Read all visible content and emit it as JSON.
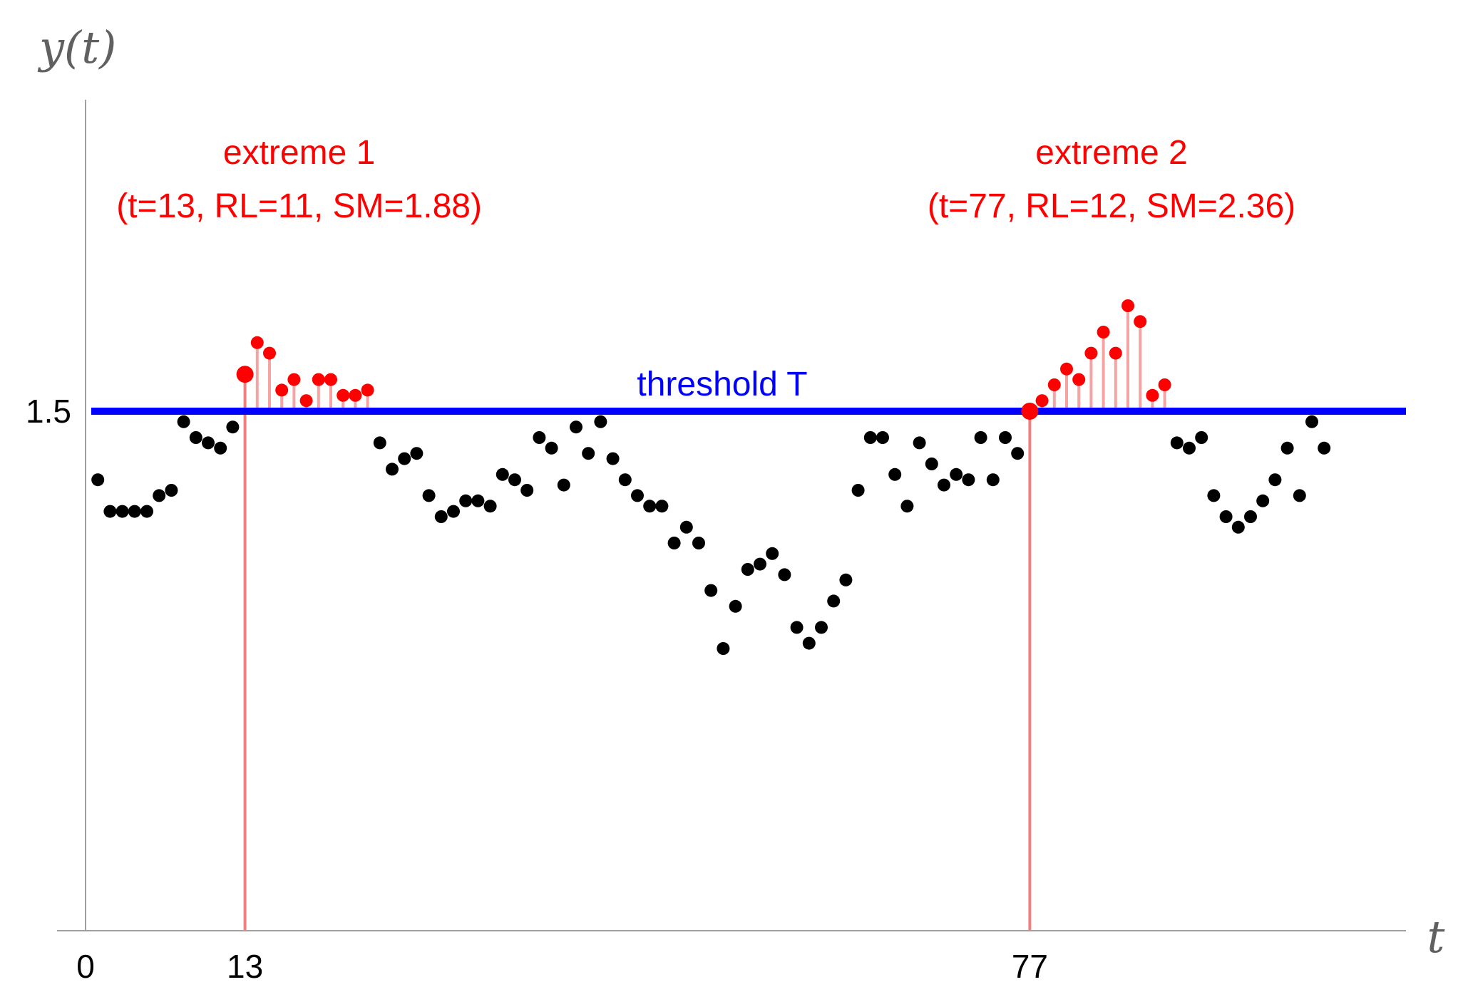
{
  "chart_data": {
    "type": "scatter",
    "title": "",
    "xlabel": "t",
    "ylabel": "y(t)",
    "xlim": [
      0,
      101
    ],
    "ylim": [
      0.75,
      1.82
    ],
    "grid": false,
    "x_ticks": [
      {
        "value": 0,
        "label": "0"
      },
      {
        "value": 13,
        "label": "13"
      },
      {
        "value": 77,
        "label": "77"
      }
    ],
    "y_ticks": [
      {
        "value": 1.5,
        "label": "1.5"
      }
    ],
    "threshold": {
      "value": 1.5,
      "label": "threshold T",
      "color": "#0000ff"
    },
    "colors": {
      "normal": "#000000",
      "extreme": "#ff0000",
      "stem": "#f5a3a3",
      "onset_line": "#f08080",
      "axis": "#808080"
    },
    "series": [
      {
        "points": [
          [
            1,
            1.37
          ],
          [
            2,
            1.31
          ],
          [
            3,
            1.31
          ],
          [
            4,
            1.31
          ],
          [
            5,
            1.31
          ],
          [
            6,
            1.34
          ],
          [
            7,
            1.35
          ],
          [
            8,
            1.48
          ],
          [
            9,
            1.45
          ],
          [
            10,
            1.44
          ],
          [
            11,
            1.43
          ],
          [
            12,
            1.47
          ],
          [
            13,
            1.57
          ],
          [
            14,
            1.63
          ],
          [
            15,
            1.61
          ],
          [
            16,
            1.54
          ],
          [
            17,
            1.56
          ],
          [
            18,
            1.52
          ],
          [
            19,
            1.56
          ],
          [
            20,
            1.56
          ],
          [
            21,
            1.53
          ],
          [
            22,
            1.53
          ],
          [
            23,
            1.54
          ],
          [
            24,
            1.44
          ],
          [
            25,
            1.39
          ],
          [
            26,
            1.41
          ],
          [
            27,
            1.42
          ],
          [
            28,
            1.34
          ],
          [
            29,
            1.3
          ],
          [
            30,
            1.31
          ],
          [
            31,
            1.33
          ],
          [
            32,
            1.33
          ],
          [
            33,
            1.32
          ],
          [
            34,
            1.38
          ],
          [
            35,
            1.37
          ],
          [
            36,
            1.35
          ],
          [
            37,
            1.45
          ],
          [
            38,
            1.43
          ],
          [
            39,
            1.36
          ],
          [
            40,
            1.47
          ],
          [
            41,
            1.42
          ],
          [
            42,
            1.48
          ],
          [
            43,
            1.41
          ],
          [
            44,
            1.37
          ],
          [
            45,
            1.34
          ],
          [
            46,
            1.32
          ],
          [
            47,
            1.32
          ],
          [
            48,
            1.25
          ],
          [
            49,
            1.28
          ],
          [
            50,
            1.25
          ],
          [
            51,
            1.16
          ],
          [
            52,
            1.05
          ],
          [
            53,
            1.13
          ],
          [
            54,
            1.2
          ],
          [
            55,
            1.21
          ],
          [
            56,
            1.23
          ],
          [
            57,
            1.19
          ],
          [
            58,
            1.09
          ],
          [
            59,
            1.06
          ],
          [
            60,
            1.09
          ],
          [
            61,
            1.14
          ],
          [
            62,
            1.18
          ],
          [
            63,
            1.35
          ],
          [
            64,
            1.45
          ],
          [
            65,
            1.45
          ],
          [
            66,
            1.38
          ],
          [
            67,
            1.32
          ],
          [
            68,
            1.44
          ],
          [
            69,
            1.4
          ],
          [
            70,
            1.36
          ],
          [
            71,
            1.38
          ],
          [
            72,
            1.37
          ],
          [
            73,
            1.45
          ],
          [
            74,
            1.37
          ],
          [
            75,
            1.45
          ],
          [
            76,
            1.42
          ],
          [
            77,
            1.5
          ],
          [
            78,
            1.52
          ],
          [
            79,
            1.55
          ],
          [
            80,
            1.58
          ],
          [
            81,
            1.56
          ],
          [
            82,
            1.61
          ],
          [
            83,
            1.65
          ],
          [
            84,
            1.61
          ],
          [
            85,
            1.7
          ],
          [
            86,
            1.67
          ],
          [
            87,
            1.53
          ],
          [
            88,
            1.55
          ],
          [
            89,
            1.44
          ],
          [
            90,
            1.43
          ],
          [
            91,
            1.45
          ],
          [
            92,
            1.34
          ],
          [
            93,
            1.3
          ],
          [
            94,
            1.28
          ],
          [
            95,
            1.3
          ],
          [
            96,
            1.33
          ],
          [
            97,
            1.37
          ],
          [
            98,
            1.43
          ],
          [
            99,
            1.34
          ],
          [
            100,
            1.48
          ],
          [
            101,
            1.43
          ]
        ]
      }
    ],
    "extremes": [
      {
        "start": 13,
        "end": 23,
        "label": "extreme 1",
        "details": "(t=13, RL=11, SM=1.88)"
      },
      {
        "start": 77,
        "end": 88,
        "label": "extreme 2",
        "details": "(t=77, RL=12, SM=2.36)"
      }
    ]
  }
}
